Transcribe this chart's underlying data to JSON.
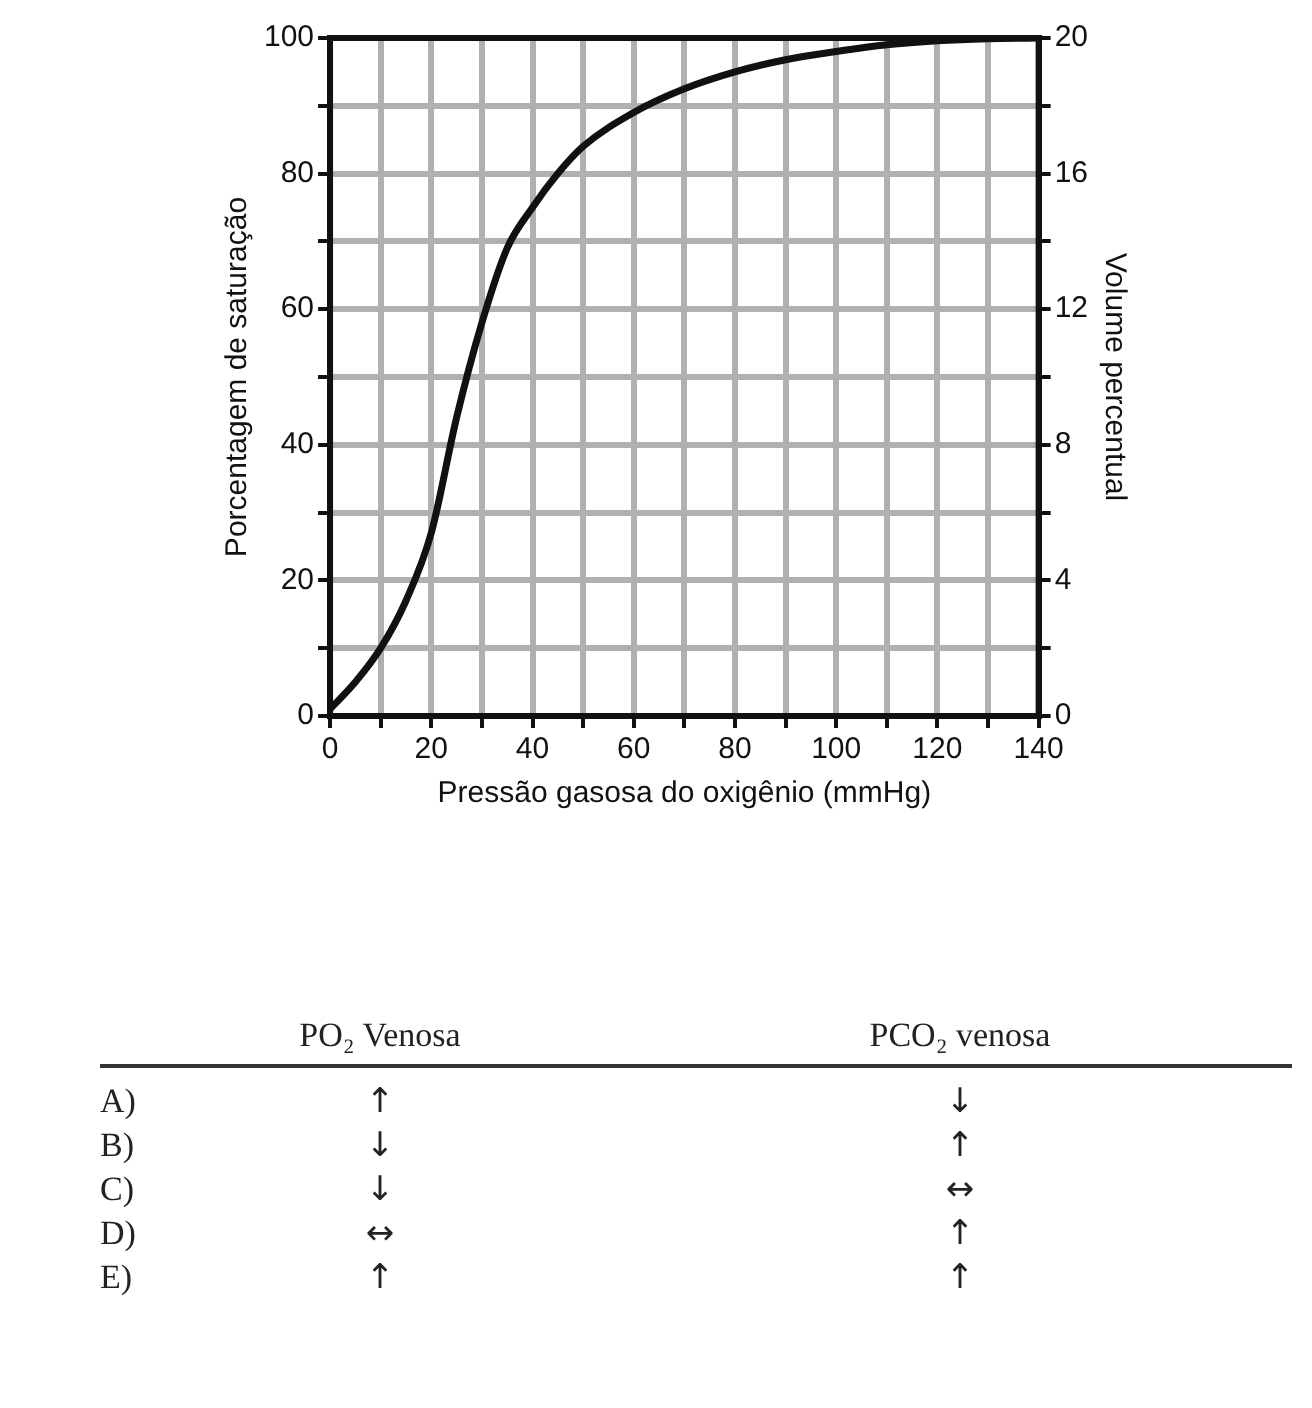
{
  "chart_data": {
    "type": "line",
    "xlabel": "Pressão gasosa do oxigênio (mmHg)",
    "ylabel": "Porcentagem de saturação",
    "y2label": "Volume percentual",
    "xlim": [
      0,
      140
    ],
    "xticks": [
      0,
      {
        "value": 10,
        "label": null
      },
      20,
      {
        "value": 30,
        "label": null
      },
      40,
      {
        "value": 50,
        "label": null
      },
      60,
      {
        "value": 70,
        "label": null
      },
      80,
      {
        "value": 90,
        "label": null
      },
      100,
      {
        "value": 110,
        "label": null
      },
      120,
      {
        "value": 130,
        "label": null
      },
      140
    ],
    "ylim": [
      0,
      100
    ],
    "yticks": [
      0,
      {
        "value": 10,
        "label": null
      },
      20,
      {
        "value": 30,
        "label": null
      },
      40,
      {
        "value": 50,
        "label": null
      },
      60,
      {
        "value": 70,
        "label": null
      },
      80,
      {
        "value": 90,
        "label": null
      },
      100
    ],
    "y2lim": [
      0,
      20
    ],
    "y2ticks": [
      0,
      {
        "value": 2,
        "label": null
      },
      4,
      {
        "value": 6,
        "label": null
      },
      8,
      {
        "value": 10,
        "label": null
      },
      12,
      {
        "value": 14,
        "label": null
      },
      16,
      {
        "value": 18,
        "label": null
      },
      20
    ],
    "grid": true,
    "legend": false,
    "marker": "none",
    "line_style": "solid",
    "series": [
      {
        "color": "#111111",
        "x": [
          0,
          5,
          10,
          15,
          20,
          25,
          30,
          35,
          40,
          45,
          50,
          60,
          70,
          80,
          90,
          100,
          110,
          120,
          130,
          140
        ],
        "values": [
          1,
          5,
          10,
          17,
          27,
          44,
          58,
          69,
          75,
          80,
          84,
          89,
          92.5,
          95,
          96.8,
          98,
          99,
          99.6,
          99.9,
          100
        ]
      }
    ],
    "annotations": [
      "PO₂ Venosa",
      "PCO₂ venosa",
      "A)",
      "↑",
      "↓",
      "B)",
      "↓",
      "↑",
      "C)",
      "↓",
      "↔",
      "D)",
      "↔",
      "↑",
      "E)",
      "↑",
      "↑"
    ]
  }
}
